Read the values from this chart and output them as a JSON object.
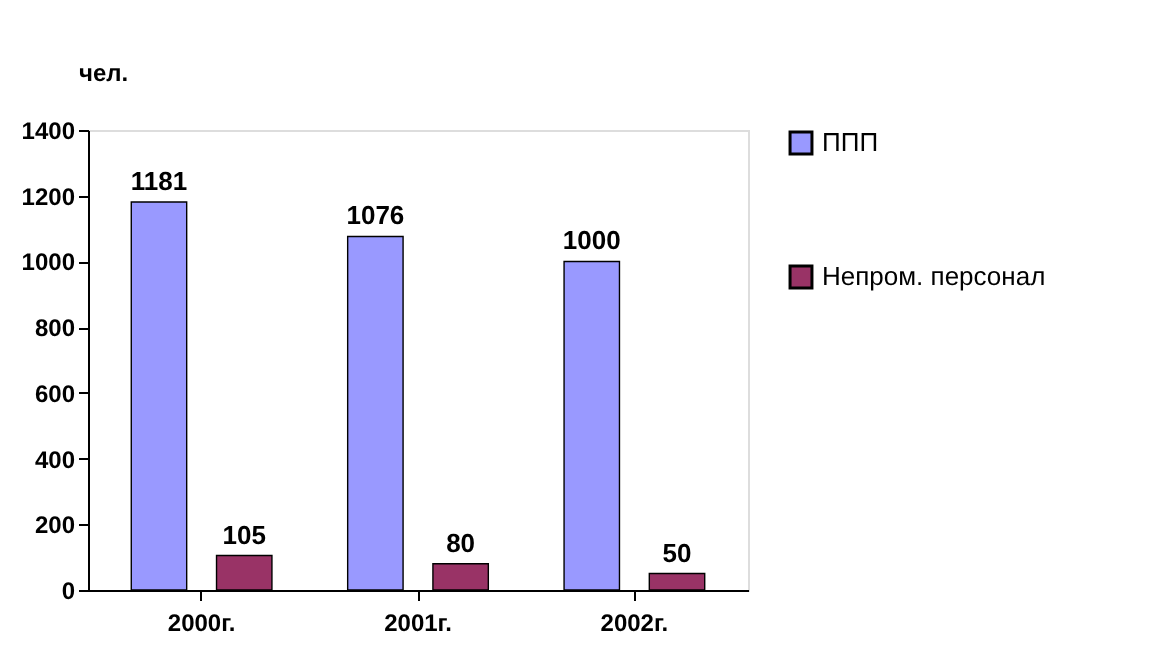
{
  "chart_data": {
    "type": "bar",
    "ylabel": "чел.",
    "categories": [
      "2000г.",
      "2001г.",
      "2002г."
    ],
    "series": [
      {
        "name": "ППП",
        "color": "#9999ff",
        "values": [
          1181,
          1076,
          1000
        ]
      },
      {
        "name": "Непром. персонал",
        "color": "#993366",
        "values": [
          105,
          80,
          50
        ]
      }
    ],
    "ylim": [
      0,
      1400
    ],
    "yticks": [
      0,
      200,
      400,
      600,
      800,
      1000,
      1200,
      1400
    ],
    "grid": false,
    "legend": "right",
    "data_labels": true
  }
}
